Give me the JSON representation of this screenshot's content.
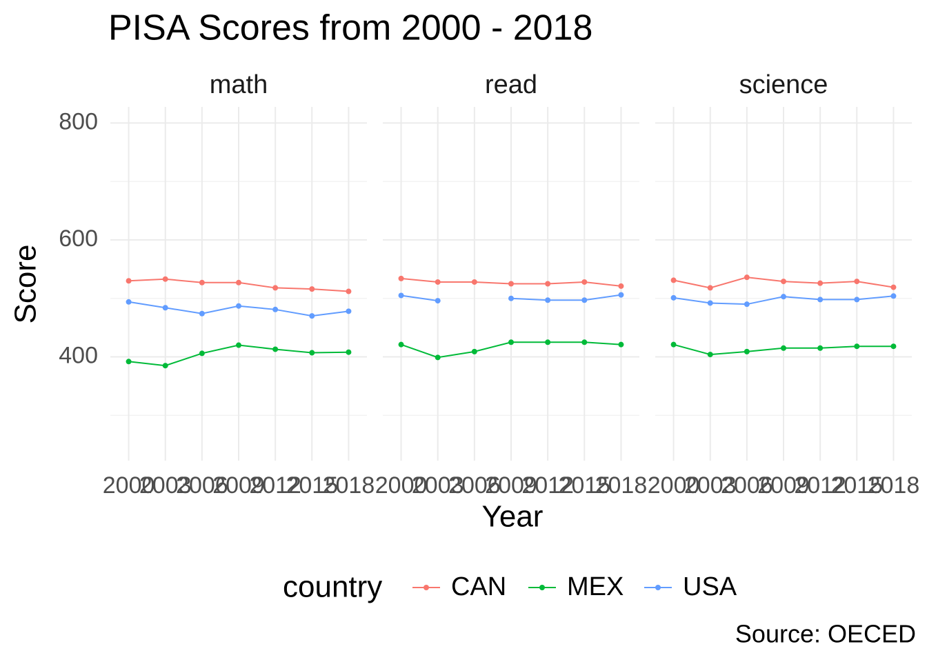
{
  "chart_data": {
    "type": "line",
    "title": "PISA Scores from 2000 - 2018",
    "xlabel": "Year",
    "ylabel": "Score",
    "legend_title": "country",
    "caption": "Source: OECED",
    "x": [
      2000,
      2003,
      2006,
      2009,
      2012,
      2015,
      2018
    ],
    "xlim": [
      1998.5,
      2019.5
    ],
    "xticks": [
      2000,
      2003,
      2006,
      2009,
      2012,
      2015,
      2018
    ],
    "ylim": [
      222.5,
      827.5
    ],
    "yticks": [
      400,
      600,
      800
    ],
    "yminor": [
      300,
      500,
      700
    ],
    "grid": true,
    "legend_position": "bottom",
    "series": [
      {
        "name": "CAN",
        "color": "#F8766D"
      },
      {
        "name": "MEX",
        "color": "#00BA38"
      },
      {
        "name": "USA",
        "color": "#619CFF"
      }
    ],
    "facets": [
      {
        "title": "math",
        "values": [
          [
            530,
            533,
            527,
            527,
            518,
            516,
            512
          ],
          [
            392,
            385,
            406,
            420,
            413,
            407,
            408
          ],
          [
            494,
            484,
            474,
            487,
            481,
            470,
            478
          ]
        ]
      },
      {
        "title": "read",
        "values": [
          [
            534,
            528,
            528,
            525,
            525,
            528,
            521
          ],
          [
            421,
            399,
            409,
            425,
            425,
            425,
            421
          ],
          [
            505,
            496,
            null,
            500,
            497,
            497,
            506
          ]
        ]
      },
      {
        "title": "science",
        "values": [
          [
            531,
            518,
            536,
            529,
            526,
            529,
            519
          ],
          [
            421,
            404,
            409,
            415,
            415,
            418,
            418
          ],
          [
            501,
            492,
            490,
            503,
            498,
            498,
            504
          ]
        ]
      }
    ]
  }
}
